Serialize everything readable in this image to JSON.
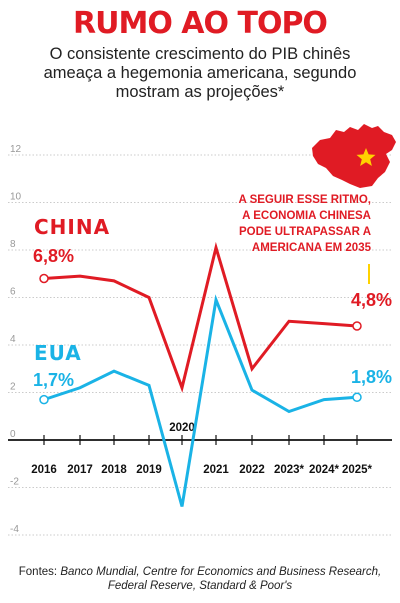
{
  "title": "RUMO AO TOPO",
  "subtitle": "O consistente crescimento do PIB chinês ameaça a hegemonia americana, segundo mostram as projeções*",
  "source_prefix": "Fontes: ",
  "source_names": "Banco Mundial, Centre for Economics and Business Research, Federal Reserve, Standard & Poor's",
  "map_icon": "china-map-with-star",
  "colors": {
    "china": "#e01b24",
    "usa": "#1ab3e6",
    "axis": "#111111",
    "grid": "#bbbbbb",
    "tick": "#999999"
  },
  "chart_data": {
    "type": "line",
    "categories": [
      "2016",
      "2017",
      "2018",
      "2019",
      "2020",
      "2021",
      "2022",
      "2023*",
      "2024*",
      "2025*"
    ],
    "ylim": [
      -4,
      12
    ],
    "yticks": [
      -4,
      -2,
      0,
      2,
      4,
      6,
      8,
      10,
      12
    ],
    "grid": true,
    "series": [
      {
        "name": "CHINA",
        "color": "#e01b24",
        "values": [
          6.8,
          6.9,
          6.7,
          6.0,
          2.2,
          8.1,
          3.0,
          5.0,
          4.9,
          4.8
        ],
        "start_label": "6,8%",
        "end_label": "4,8%"
      },
      {
        "name": "EUA",
        "color": "#1ab3e6",
        "values": [
          1.7,
          2.2,
          2.9,
          2.3,
          -2.8,
          5.9,
          2.1,
          1.2,
          1.7,
          1.8
        ],
        "start_label": "1,7%",
        "end_label": "1,8%"
      }
    ],
    "annotation": [
      "A SEGUIR ESSE RITMO,",
      "A ECONOMIA CHINESA",
      "PODE ULTRAPASSAR A",
      "AMERICANA EM 2035"
    ]
  }
}
